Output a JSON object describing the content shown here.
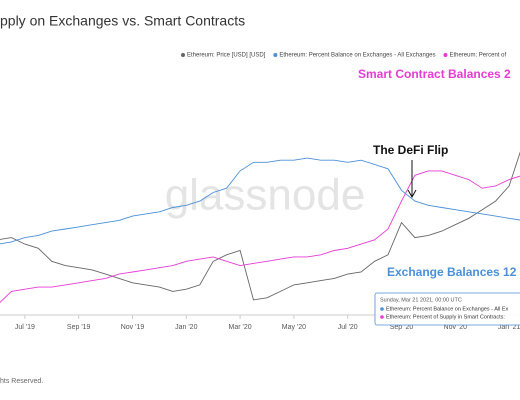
{
  "chart_data": {
    "type": "line",
    "title": "pply on Exchanges vs. Smart Contracts",
    "watermark": "glassnode",
    "annotations": [
      "Smart Contract Balances 2",
      "The DeFi Flip",
      "Exchange Balances 12"
    ],
    "tooltip": [
      "Sunday, Mar 21 2021, 00:00 UTC",
      "Ethereum: Percent Balance on Exchanges - All Ex",
      "Ethereum: Percent of Supply in Smart Contracts:"
    ],
    "footer": "hts Reserved.",
    "categories": [
      null,
      null,
      "Jul '19",
      null,
      null,
      null,
      "Sep '19",
      null,
      null,
      null,
      "Nov '19",
      null,
      null,
      null,
      "Jan '20",
      null,
      null,
      null,
      "Mar '20",
      null,
      null,
      null,
      "May '20",
      null,
      null,
      null,
      "Jul '20",
      null,
      null,
      null,
      "Sep '20",
      null,
      null,
      null,
      "Nov '20",
      null,
      null,
      null,
      "Jan '21",
      null,
      null,
      null,
      null
    ],
    "ylim": [
      0,
      100
    ],
    "series": [
      {
        "name": "Ethereum: Price [USD] [USD]",
        "color": "#666666",
        "values": [
          35,
          36,
          33,
          31,
          25,
          23,
          22,
          21,
          19,
          17,
          15,
          14,
          13,
          11,
          12,
          14,
          25,
          28,
          30,
          7,
          8,
          11,
          14,
          15,
          16,
          17,
          19,
          20,
          25,
          28,
          43,
          36,
          37,
          39,
          42,
          45,
          49,
          53,
          60,
          79,
          81,
          77,
          72
        ]
      },
      {
        "name": "Ethereum: Percent Balance on Exchanges - All Exchanges",
        "color": "#4a90d9",
        "values": [
          33,
          34,
          36,
          37,
          39,
          40,
          41,
          42,
          43,
          44,
          46,
          47,
          48,
          50,
          51,
          53,
          57,
          59,
          67,
          71,
          71,
          72,
          72,
          73,
          72,
          72,
          71,
          72,
          70,
          68,
          58,
          53,
          51,
          50,
          49,
          48,
          47,
          46,
          45,
          44,
          45,
          47,
          47
        ]
      },
      {
        "name": "Ethereum: Percent of",
        "color": "#e83ad6",
        "values": [
          5,
          11,
          12,
          13,
          13,
          14,
          15,
          16,
          17,
          19,
          20,
          21,
          22,
          23,
          25,
          26,
          27,
          25,
          23,
          24,
          25,
          26,
          27,
          27,
          28,
          30,
          31,
          33,
          35,
          40,
          53,
          65,
          67,
          67,
          65,
          63,
          59,
          60,
          63,
          65,
          70,
          74,
          77
        ]
      }
    ]
  }
}
